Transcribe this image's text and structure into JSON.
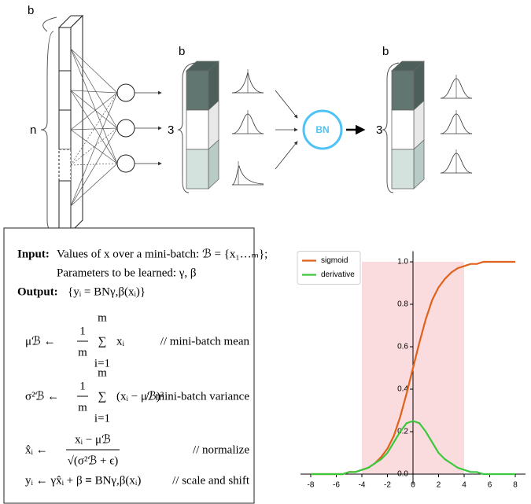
{
  "diagram": {
    "input_batch_label": "b",
    "input_size_label": "n",
    "hidden_batch_label": "b",
    "hidden_units_label": "3",
    "bn_label": "BN",
    "output_batch_label": "b",
    "output_units_label": "3"
  },
  "algorithm": {
    "input_heading": "Input:",
    "input_text": "Values of x over a mini-batch: ℬ = {x₁…ₘ};",
    "params_text": "Parameters to be learned: γ, β",
    "output_heading": "Output:",
    "output_text": "{yᵢ = BNγ,β(xᵢ)}",
    "steps": [
      {
        "lhs": "μℬ ←",
        "num": "1",
        "den": "m",
        "sum_top": "m",
        "operator": "∑",
        "sum_bottom": "i=1",
        "body": "xᵢ",
        "comment": "// mini-batch mean"
      },
      {
        "lhs": "σ²ℬ ←",
        "num": "1",
        "den": "m",
        "sum_top": "m",
        "operator": "∑",
        "sum_bottom": "i=1",
        "body": "(xᵢ − μℬ)²",
        "comment": "// mini-batch variance"
      },
      {
        "lhs": "x̂ᵢ ←",
        "num": "xᵢ − μℬ",
        "den": "√(σ²ℬ + ϵ)",
        "comment": "// normalize"
      },
      {
        "lhs": "yᵢ ← γx̂ᵢ + β ≡ BNγ,β(xᵢ)",
        "comment": "// scale and shift"
      }
    ]
  },
  "chart_data": {
    "type": "line",
    "x": [
      -8,
      -7.5,
      -7,
      -6.5,
      -6,
      -5.5,
      -5,
      -4.5,
      -4,
      -3.5,
      -3,
      -2.5,
      -2,
      -1.5,
      -1,
      -0.5,
      0,
      0.5,
      1,
      1.5,
      2,
      2.5,
      3,
      3.5,
      4,
      4.5,
      5,
      5.5,
      6,
      6.5,
      7,
      7.5,
      8
    ],
    "series": [
      {
        "name": "sigmoid",
        "color": "#e0621a",
        "values": [
          0,
          0,
          0,
          0,
          0,
          0,
          0.01,
          0.01,
          0.02,
          0.03,
          0.05,
          0.08,
          0.12,
          0.18,
          0.27,
          0.38,
          0.5,
          0.62,
          0.73,
          0.82,
          0.88,
          0.92,
          0.95,
          0.97,
          0.98,
          0.99,
          0.99,
          1,
          1,
          1,
          1,
          1,
          1
        ]
      },
      {
        "name": "derivative",
        "color": "#3cc83c",
        "values": [
          0,
          0,
          0,
          0,
          0,
          0,
          0.01,
          0.01,
          0.02,
          0.03,
          0.05,
          0.07,
          0.1,
          0.15,
          0.2,
          0.24,
          0.25,
          0.24,
          0.2,
          0.15,
          0.1,
          0.07,
          0.05,
          0.03,
          0.02,
          0.01,
          0.01,
          0,
          0,
          0,
          0,
          0,
          0
        ]
      }
    ],
    "xlim": [
      -8.8,
      8.8
    ],
    "ylim": [
      -0.05,
      1.05
    ],
    "xticks": [
      -8,
      -6,
      -4,
      -2,
      0,
      2,
      4,
      6,
      8
    ],
    "yticks": [
      {
        "value": 0,
        "label": "0.0"
      },
      0.2,
      0.4,
      0.6,
      0.8,
      {
        "value": 1,
        "label": "1.0"
      }
    ],
    "highlight": {
      "xlim": [
        -4,
        4
      ],
      "ylim": [
        0,
        1
      ],
      "color": "#f9d3d7"
    },
    "legend": "upper left"
  }
}
